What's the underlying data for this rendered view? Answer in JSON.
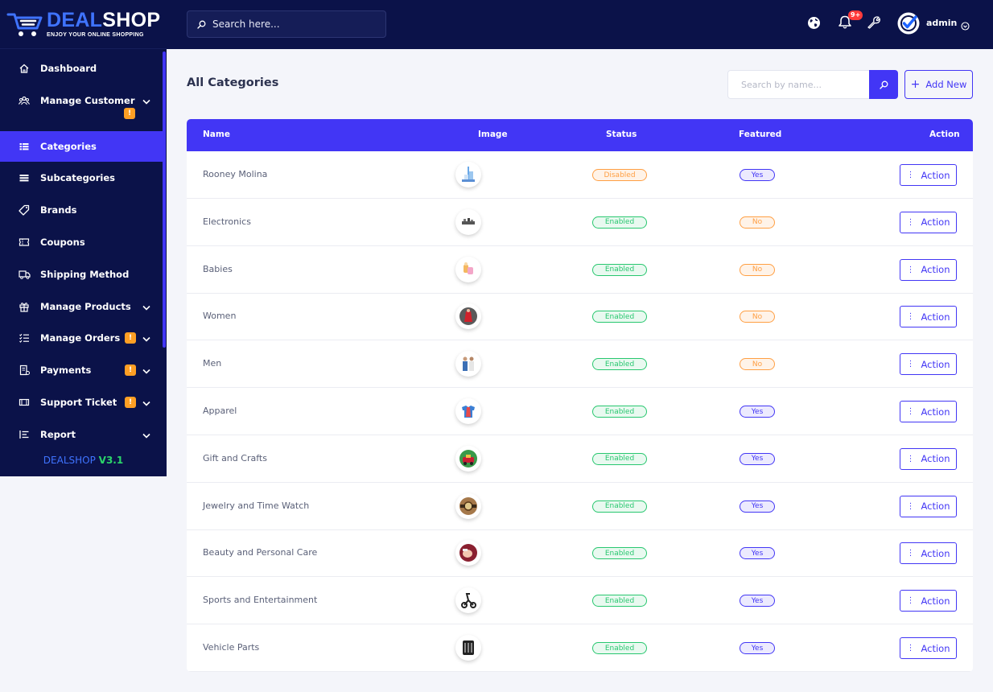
{
  "brand": {
    "name_part1": "DEAL",
    "name_part2": "SHOP",
    "tagline": "ENJOY YOUR ONLINE SHOPPING",
    "version_prefix": "DEALSHOP",
    "version": "V3.1"
  },
  "topbar": {
    "search_placeholder": "Search here...",
    "notification_count": "9+",
    "username": "admin"
  },
  "sidebar": {
    "items": [
      {
        "label": "Dashboard",
        "icon": "home-icon"
      },
      {
        "label": "Manage Customer",
        "icon": "users-icon",
        "warning": "!"
      },
      {
        "label": "Categories",
        "icon": "categories-icon",
        "active": true
      },
      {
        "label": "Subcategories",
        "icon": "subcategories-icon"
      },
      {
        "label": "Brands",
        "icon": "tag-icon"
      },
      {
        "label": "Coupons",
        "icon": "coupon-icon"
      },
      {
        "label": "Shipping Method",
        "icon": "truck-icon"
      },
      {
        "label": "Manage Products",
        "icon": "gift-icon"
      },
      {
        "label": "Manage Orders",
        "icon": "list-icon",
        "warning": "!"
      },
      {
        "label": "Payments",
        "icon": "receipt-icon",
        "warning": "!"
      },
      {
        "label": "Support Ticket",
        "icon": "ticket-icon",
        "warning": "!"
      },
      {
        "label": "Report",
        "icon": "report-icon"
      }
    ]
  },
  "main": {
    "title": "All Categories",
    "search_placeholder": "Search by name...",
    "add_new_label": "Add New",
    "columns": {
      "name": "Name",
      "image": "Image",
      "status": "Status",
      "featured": "Featured",
      "action": "Action"
    },
    "rows": [
      {
        "name": "Rooney Molina",
        "status": "Disabled",
        "featured": "Yes"
      },
      {
        "name": "Electronics",
        "status": "Enabled",
        "featured": "No"
      },
      {
        "name": "Babies",
        "status": "Enabled",
        "featured": "No"
      },
      {
        "name": "Women",
        "status": "Enabled",
        "featured": "No"
      },
      {
        "name": "Men",
        "status": "Enabled",
        "featured": "No"
      },
      {
        "name": "Apparel",
        "status": "Enabled",
        "featured": "Yes"
      },
      {
        "name": "Gift and Crafts",
        "status": "Enabled",
        "featured": "Yes"
      },
      {
        "name": "Jewelry and Time Watch",
        "status": "Enabled",
        "featured": "Yes"
      },
      {
        "name": "Beauty and Personal Care",
        "status": "Enabled",
        "featured": "Yes"
      },
      {
        "name": "Sports and Entertainment",
        "status": "Enabled",
        "featured": "Yes"
      },
      {
        "name": "Vehicle Parts",
        "status": "Enabled",
        "featured": "Yes"
      }
    ],
    "action_label": "Action"
  },
  "colors": {
    "primary": "#4236f5",
    "sidebar_bg": "#0b1249",
    "enabled": "#28c76f",
    "disabled": "#ff9f43",
    "warning": "#ff9f24"
  }
}
